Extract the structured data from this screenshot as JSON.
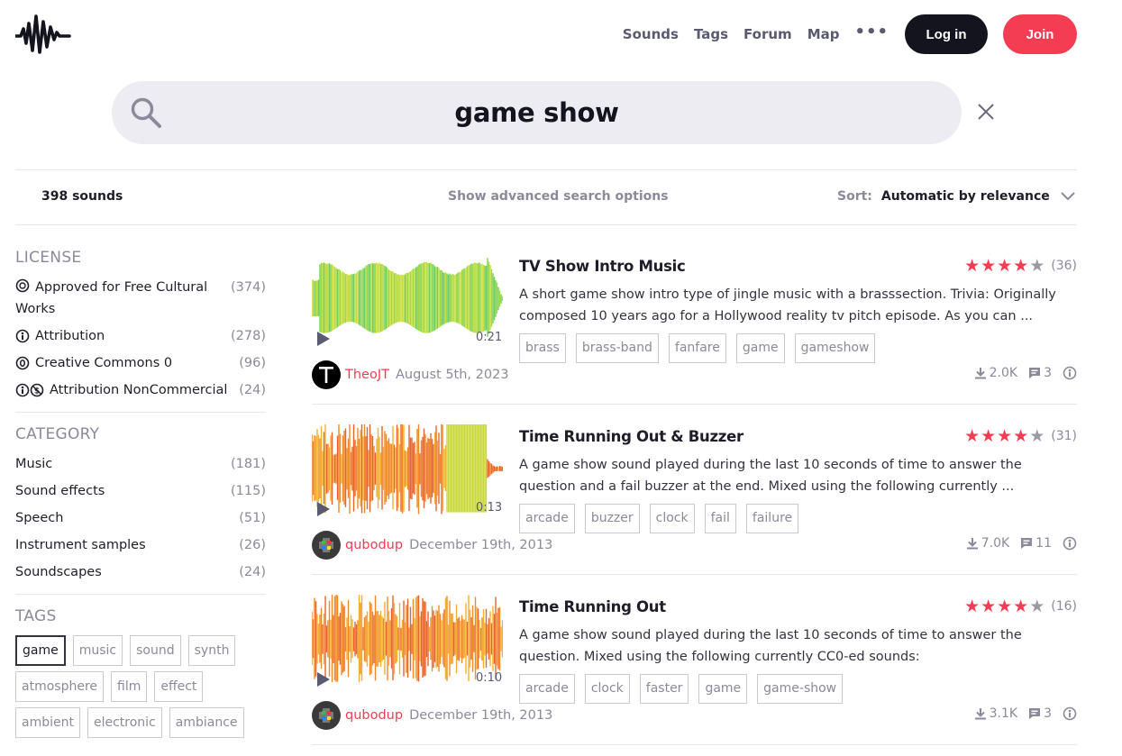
{
  "nav": {
    "links": [
      "Sounds",
      "Tags",
      "Forum",
      "Map"
    ],
    "login_label": "Log in",
    "join_label": "Join"
  },
  "search": {
    "value": "game show"
  },
  "results_bar": {
    "count": "398 sounds",
    "advanced": "Show advanced search options",
    "sort_label": "Sort:",
    "sort_value": "Automatic by relevance"
  },
  "sidebar": {
    "license_title": "LICENSE",
    "licenses": [
      {
        "label": "Approved for Free Cultural Works",
        "count": "(374)"
      },
      {
        "label": "Attribution",
        "count": "(278)"
      },
      {
        "label": "Creative Commons 0",
        "count": "(96)"
      },
      {
        "label": "Attribution NonCommercial",
        "count": "(24)"
      }
    ],
    "category_title": "CATEGORY",
    "categories": [
      {
        "label": "Music",
        "count": "(181)"
      },
      {
        "label": "Sound effects",
        "count": "(115)"
      },
      {
        "label": "Speech",
        "count": "(51)"
      },
      {
        "label": "Instrument samples",
        "count": "(26)"
      },
      {
        "label": "Soundscapes",
        "count": "(24)"
      }
    ],
    "tags_title": "TAGS",
    "tags": [
      "game",
      "music",
      "sound",
      "synth",
      "atmosphere",
      "film",
      "effect",
      "ambient",
      "electronic",
      "ambiance"
    ]
  },
  "results": [
    {
      "title": "TV Show Intro Music",
      "rating": 4,
      "rating_count": "(36)",
      "description": "A short game show intro type of jingle music with a brasssection. Trivia: Originally composed 10 years ago for a Hollywood reality tv pitch episode. As you can ...",
      "tags": [
        "brass",
        "brass-band",
        "fanfare",
        "game",
        "gameshow"
      ],
      "duration": "0:21",
      "user": "TheoJT",
      "date": "August 5th, 2023",
      "downloads": "2.0K",
      "comments": "3",
      "wave_colors": [
        "#a6d83a",
        "#c6dd3c",
        "#6fcf5a"
      ]
    },
    {
      "title": "Time Running Out & Buzzer",
      "rating": 4,
      "rating_count": "(31)",
      "description": "A game show sound played during the last 10 seconds of time to answer the question and a fail buzzer at the end. Mixed using the following currently ...",
      "tags": [
        "arcade",
        "buzzer",
        "clock",
        "fail",
        "failure"
      ],
      "duration": "0:13",
      "user": "qubodup",
      "date": "December 19th, 2013",
      "downloads": "7.0K",
      "comments": "11",
      "wave_colors": [
        "#f08a24",
        "#f4b02a",
        "#e8642a"
      ]
    },
    {
      "title": "Time Running Out",
      "rating": 4,
      "rating_count": "(16)",
      "description": "A game show sound played during the last 10 seconds of time to answer the question. Mixed using the following currently CC0-ed sounds:",
      "tags": [
        "arcade",
        "clock",
        "faster",
        "game",
        "game-show"
      ],
      "duration": "0:10",
      "user": "qubodup",
      "date": "December 19th, 2013",
      "downloads": "3.1K",
      "comments": "3",
      "wave_colors": [
        "#f08a24",
        "#f4b02a",
        "#e8642a"
      ]
    }
  ]
}
